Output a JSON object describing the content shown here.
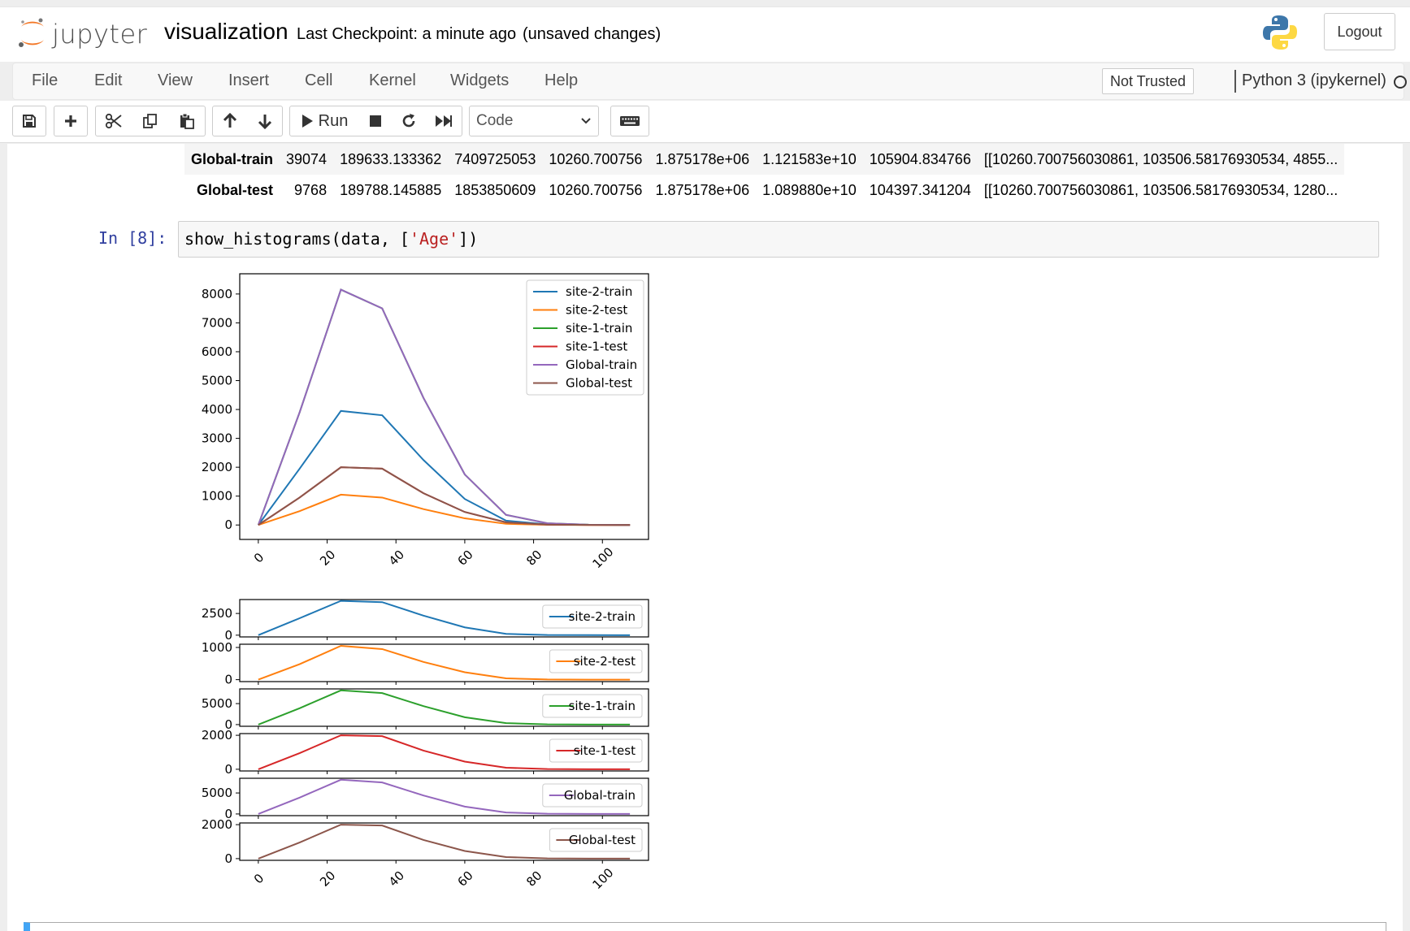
{
  "header": {
    "logo_text": "jupyter",
    "notebook_name": "visualization",
    "checkpoint": "Last Checkpoint: a minute ago",
    "autosave": "(unsaved changes)",
    "logout": "Logout"
  },
  "menubar": {
    "items": [
      "File",
      "Edit",
      "View",
      "Insert",
      "Cell",
      "Kernel",
      "Widgets",
      "Help"
    ],
    "trust": "Not Trusted",
    "kernel": "Python 3 (ipykernel)"
  },
  "toolbar": {
    "run_label": "Run",
    "cell_type": "Code",
    "buttons": [
      "save-icon",
      "plus-icon",
      "cut-icon",
      "copy-icon",
      "paste-icon",
      "arrow-up-icon",
      "arrow-down-icon",
      "run-icon",
      "stop-icon",
      "restart-icon",
      "fast-forward-icon",
      "keyboard-icon"
    ]
  },
  "table": {
    "rows": [
      {
        "label": "Global-train",
        "cells": [
          "39074",
          "189633.133362",
          "7409725053",
          "10260.700756",
          "1.875178e+06",
          "1.121583e+10",
          "105904.834766",
          "[[10260.700756030861, 103506.58176930534, 4855..."
        ]
      },
      {
        "label": "Global-test",
        "cells": [
          "9768",
          "189788.145885",
          "1853850609",
          "10260.700756",
          "1.875178e+06",
          "1.089880e+10",
          "104397.341204",
          "[[10260.700756030861, 103506.58176930534, 1280..."
        ]
      }
    ]
  },
  "cell": {
    "prompt": "In [8]:",
    "code_prefix": "show_histograms(data, [",
    "code_string": "'Age'",
    "code_suffix": "])"
  },
  "chart_data": [
    {
      "type": "line",
      "title": "",
      "xlabel": "",
      "ylabel": "",
      "x": [
        0,
        12,
        24,
        36,
        48,
        60,
        72,
        84,
        96,
        108
      ],
      "xticks": [
        0,
        20,
        40,
        60,
        80,
        100
      ],
      "yticks": [
        0,
        1000,
        2000,
        3000,
        4000,
        5000,
        6000,
        7000,
        8000
      ],
      "ylim": [
        -500,
        8700
      ],
      "xlim": [
        -5.4,
        113.4
      ],
      "legend": "top-right",
      "series": [
        {
          "name": "site-2-train",
          "color": "#1f77b4",
          "values": [
            0,
            1950,
            3950,
            3800,
            2250,
            900,
            150,
            20,
            5,
            0
          ]
        },
        {
          "name": "site-2-test",
          "color": "#ff7f0e",
          "values": [
            0,
            480,
            1050,
            950,
            550,
            230,
            40,
            5,
            1,
            0
          ]
        },
        {
          "name": "site-1-train",
          "color": "#2ca02c",
          "values": [
            0,
            3900,
            8150,
            7500,
            4400,
            1750,
            350,
            60,
            10,
            0
          ]
        },
        {
          "name": "site-1-test",
          "color": "#d62728",
          "values": [
            0,
            950,
            2000,
            1950,
            1100,
            450,
            90,
            15,
            2,
            0
          ]
        },
        {
          "name": "Global-train",
          "color": "#9467bd",
          "values": [
            0,
            3900,
            8150,
            7500,
            4400,
            1750,
            350,
            60,
            10,
            0
          ]
        },
        {
          "name": "Global-test",
          "color": "#8c564b",
          "values": [
            0,
            950,
            2000,
            1950,
            1100,
            450,
            90,
            15,
            2,
            0
          ]
        }
      ]
    },
    {
      "type": "line",
      "subplots": true,
      "x": [
        0,
        12,
        24,
        36,
        48,
        60,
        72,
        84,
        96,
        108
      ],
      "xticks": [
        0,
        20,
        40,
        60,
        80,
        100
      ],
      "xlim": [
        -5.4,
        113.4
      ],
      "panels": [
        {
          "name": "site-2-train",
          "color": "#1f77b4",
          "yticks": [
            0,
            2500
          ],
          "ylim": [
            -200,
            4100
          ],
          "values": [
            0,
            1950,
            3950,
            3800,
            2250,
            900,
            150,
            20,
            5,
            0
          ]
        },
        {
          "name": "site-2-test",
          "color": "#ff7f0e",
          "yticks": [
            0,
            1000
          ],
          "ylim": [
            -60,
            1100
          ],
          "values": [
            0,
            480,
            1050,
            950,
            550,
            230,
            40,
            5,
            1,
            0
          ]
        },
        {
          "name": "site-1-train",
          "color": "#2ca02c",
          "yticks": [
            0,
            5000
          ],
          "ylim": [
            -400,
            8500
          ],
          "values": [
            0,
            3900,
            8150,
            7500,
            4400,
            1750,
            350,
            60,
            10,
            0
          ]
        },
        {
          "name": "site-1-test",
          "color": "#d62728",
          "yticks": [
            0,
            2000
          ],
          "ylim": [
            -100,
            2100
          ],
          "values": [
            0,
            950,
            2000,
            1950,
            1100,
            450,
            90,
            15,
            2,
            0
          ]
        },
        {
          "name": "Global-train",
          "color": "#9467bd",
          "yticks": [
            0,
            5000
          ],
          "ylim": [
            -400,
            8500
          ],
          "values": [
            0,
            3900,
            8150,
            7500,
            4400,
            1750,
            350,
            60,
            10,
            0
          ]
        },
        {
          "name": "Global-test",
          "color": "#8c564b",
          "yticks": [
            0,
            2000
          ],
          "ylim": [
            -100,
            2100
          ],
          "values": [
            0,
            950,
            2000,
            1950,
            1100,
            450,
            90,
            15,
            2,
            0
          ]
        }
      ]
    }
  ]
}
